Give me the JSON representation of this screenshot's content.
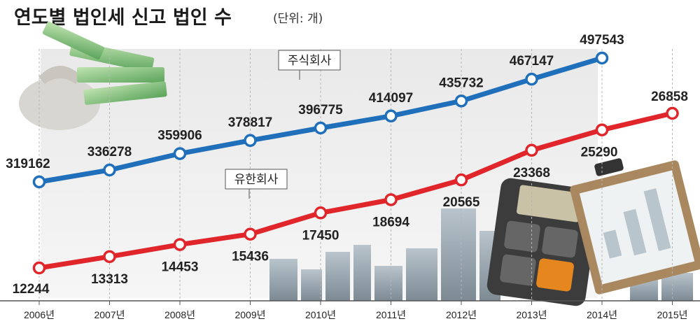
{
  "title": "연도별 법인세 신고 법인 수",
  "unit": "(단위: 개)",
  "chart_data": {
    "type": "line",
    "categories": [
      "2006년",
      "2007년",
      "2008년",
      "2009년",
      "2010년",
      "2011년",
      "2012년",
      "2013년",
      "2014년",
      "2015년"
    ],
    "series": [
      {
        "name": "주식회사",
        "color": "#1f6fba",
        "values": [
          319162,
          336278,
          359906,
          378817,
          396775,
          414097,
          435732,
          467147,
          497543,
          null
        ]
      },
      {
        "name": "유한회사",
        "color": "#e0262b",
        "values": [
          12244,
          13313,
          14453,
          15436,
          17450,
          18694,
          20565,
          23368,
          25290,
          26858
        ]
      }
    ],
    "grid": false,
    "legend": "inline-callouts"
  }
}
